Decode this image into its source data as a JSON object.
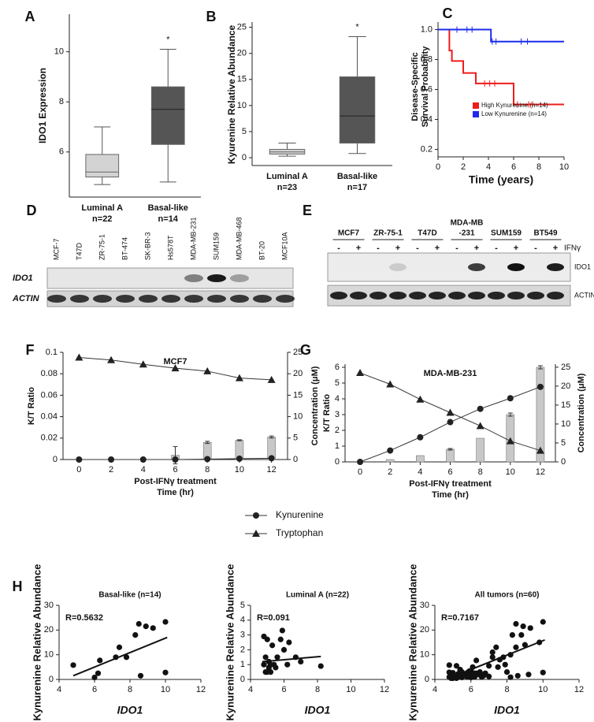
{
  "chart_data": [
    {
      "type": "box",
      "panel": "A",
      "ylabel": "IDO1 Expression",
      "categories": [
        "Luminal A",
        "Basal-like"
      ],
      "n_labels": [
        "n=22",
        "n=14"
      ],
      "boxes": [
        {
          "min": 4.7,
          "q1": 5.0,
          "median": 5.2,
          "q3": 5.9,
          "max": 7.0
        },
        {
          "min": 4.8,
          "q1": 6.3,
          "median": 7.7,
          "q3": 8.6,
          "max": 10.1
        }
      ],
      "colors": [
        "#d3d3d3",
        "#555555"
      ],
      "annotation": "*",
      "ylim": [
        4.2,
        11.5
      ],
      "yticks": [
        6,
        8,
        10
      ]
    },
    {
      "type": "box",
      "panel": "B",
      "ylabel": "Kyurenine Relative Abundance",
      "categories": [
        "Luminal A",
        "Basal-like"
      ],
      "n_labels": [
        "n=23",
        "n=17"
      ],
      "boxes": [
        {
          "min": 0.3,
          "q1": 0.7,
          "median": 1.1,
          "q3": 1.6,
          "max": 2.8
        },
        {
          "min": 0.8,
          "q1": 2.8,
          "median": 8,
          "q3": 15.5,
          "max": 23.2
        }
      ],
      "colors": [
        "#d3d3d3",
        "#555555"
      ],
      "annotation": "*",
      "ylim": [
        -1.5,
        26
      ],
      "yticks": [
        0,
        5,
        10,
        15,
        20,
        25
      ]
    },
    {
      "type": "step",
      "panel": "C",
      "xlabel": "Time (years)",
      "ylabel": [
        "Disease-Specific",
        "Survival Probability"
      ],
      "series": [
        {
          "name": "High Kynurenine (n=14)",
          "color": "#ee1c1c",
          "x": [
            0,
            0.9,
            1.1,
            2,
            3,
            6,
            10
          ],
          "values": [
            1.0,
            0.86,
            0.79,
            0.71,
            0.64,
            0.5,
            0.5
          ],
          "censored": [
            3.7,
            4.1,
            4.5,
            6.3,
            7.2,
            7.5
          ]
        },
        {
          "name": "Low Kynurenine (n=14)",
          "color": "#1c2bee",
          "x": [
            0,
            4.2,
            10
          ],
          "values": [
            1.0,
            0.92,
            0.92
          ],
          "censored": [
            1.5,
            2.3,
            2.7,
            4.3,
            4.6,
            6.6,
            7.1
          ]
        }
      ],
      "legend": "lower right",
      "xlim": [
        0,
        10
      ],
      "xticks": [
        0,
        2,
        4,
        6,
        8,
        10
      ],
      "ylim": [
        0.15,
        1.05
      ],
      "yticks": [
        0.2,
        0.4,
        0.6,
        0.8,
        {
          "value": 1,
          "label": "1.0"
        }
      ]
    },
    {
      "type": "combo",
      "panel": "F",
      "title": "MCF7",
      "xlabel": [
        "Post-IFNγ treatment",
        "Time (hr)"
      ],
      "ylabel": "K/T Ratio",
      "y2label": "Concentration (μM)",
      "x": [
        0,
        2,
        4,
        6,
        8,
        10,
        12
      ],
      "series": [
        {
          "type": "bar",
          "color": "#c8c8c8",
          "values": [
            0,
            0,
            0,
            0.004,
            0.016,
            0.018,
            0.021
          ],
          "errors": [
            0,
            0,
            0,
            0.008,
            0.001,
            0.0005,
            0.001
          ]
        },
        {
          "type": "line",
          "name": "Kynurenine",
          "marker": "circle",
          "axis": "y2",
          "values": [
            0,
            0,
            0,
            0,
            0.1,
            0.2,
            0.3
          ]
        },
        {
          "type": "line",
          "name": "Tryptophan",
          "marker": "triangle",
          "axis": "y2",
          "values": [
            23.8,
            23.2,
            22.2,
            21.3,
            20.6,
            19,
            18.6
          ]
        }
      ],
      "xlim": [
        -1,
        13
      ],
      "xticks": [
        0,
        2,
        4,
        6,
        8,
        10,
        12
      ],
      "ylim": [
        0,
        0.1
      ],
      "yticks": [
        0,
        0.02,
        0.04,
        0.06,
        0.08,
        0.1
      ],
      "y2lim": [
        0,
        25
      ],
      "y2ticks": [
        0,
        5,
        10,
        15,
        20,
        25
      ]
    },
    {
      "type": "combo",
      "panel": "G",
      "title": "MDA-MB-231",
      "xlabel": [
        "Post-IFNγ treatment",
        "Time (hr)"
      ],
      "ylabel": "K/T Ratio",
      "y2label": "Concentration (μM)",
      "x": [
        0,
        2,
        4,
        6,
        8,
        10,
        12
      ],
      "series": [
        {
          "type": "bar",
          "color": "#c8c8c8",
          "values": [
            0,
            0.15,
            0.4,
            0.8,
            1.5,
            3.0,
            6.0
          ],
          "errors": [
            0,
            0,
            0,
            0.05,
            0,
            0.1,
            0.1
          ]
        },
        {
          "type": "line",
          "marker": "circle",
          "axis": "y2",
          "values": [
            0,
            3,
            6.5,
            10.5,
            14,
            16.8,
            19.8
          ]
        },
        {
          "type": "line",
          "marker": "triangle",
          "axis": "y2",
          "values": [
            23.5,
            20.5,
            16.5,
            13,
            9.5,
            5.5,
            3
          ]
        }
      ],
      "xlim": [
        -1,
        13
      ],
      "xticks": [
        0,
        2,
        4,
        6,
        8,
        10,
        12
      ],
      "ylim": [
        0,
        6.2
      ],
      "yticks": [
        0,
        1,
        2,
        3,
        4,
        5,
        6
      ],
      "y2lim": [
        0,
        25.8
      ],
      "y2ticks": [
        0,
        5,
        10,
        15,
        20,
        25
      ]
    },
    {
      "type": "scatter",
      "panel": "H",
      "title": "Basal-like   (n=14)",
      "annotation": "R=0.5632",
      "xlabel": "IDO1",
      "ylabel": "Kynurenine Relative Abundance",
      "x": [
        4.8,
        6.0,
        6.2,
        6.3,
        7.2,
        7.4,
        7.8,
        8.3,
        8.5,
        8.6,
        8.9,
        9.3,
        10.0,
        10.0
      ],
      "values": [
        5.8,
        0.8,
        2.5,
        7.7,
        9,
        13,
        9,
        18,
        22.5,
        1.5,
        21.5,
        20.8,
        23.3,
        2.8
      ],
      "fit": {
        "x": [
          4.8,
          10.1
        ],
        "y": [
          1.5,
          17
        ]
      },
      "xlim": [
        4,
        12
      ],
      "xticks": [
        4,
        6,
        8,
        10,
        12
      ],
      "ylim": [
        0,
        30
      ],
      "yticks": [
        0,
        10,
        20,
        30
      ]
    },
    {
      "type": "scatter",
      "title": "Luminal A  (n=22)",
      "annotation": "R=0.091",
      "xlabel": "IDO1",
      "ylabel": "Kynurenine Relative Abundance",
      "x": [
        4.8,
        4.9,
        4.8,
        4.9,
        5.0,
        5.0,
        5.1,
        5.1,
        5.2,
        5.2,
        5.3,
        5.4,
        5.5,
        5.6,
        5.8,
        5.9,
        6.0,
        6.2,
        6.3,
        6.7,
        7.0,
        8.2
      ],
      "values": [
        2.9,
        0.5,
        1.0,
        1.5,
        2.7,
        0.5,
        1.2,
        0.8,
        1.0,
        0.5,
        2.3,
        1.0,
        0.8,
        1.5,
        2.7,
        3.3,
        2.0,
        1.0,
        2.5,
        1.5,
        1.2,
        0.9
      ],
      "fit": {
        "x": [
          4.7,
          8.2
        ],
        "y": [
          1.2,
          1.55
        ]
      },
      "xlim": [
        4,
        12
      ],
      "xticks": [
        4,
        6,
        8,
        10,
        12
      ],
      "ylim": [
        0,
        5
      ],
      "yticks": [
        0,
        1,
        2,
        3,
        4,
        5
      ]
    },
    {
      "type": "scatter",
      "title": "All tumors   (n=60)",
      "annotation": "R=0.7167",
      "xlabel": "IDO1",
      "ylabel": "Kynurenine Relative Abundance",
      "x": [
        4.8,
        6.0,
        6.2,
        6.3,
        7.2,
        7.4,
        7.8,
        8.3,
        8.5,
        8.6,
        8.9,
        9.3,
        10.0,
        10.0,
        4.8,
        4.9,
        4.8,
        4.9,
        5.0,
        5.0,
        5.1,
        5.1,
        5.2,
        5.2,
        5.3,
        5.4,
        5.5,
        5.6,
        5.8,
        5.9,
        6.0,
        6.2,
        6.3,
        6.7,
        7.0,
        8.2,
        5.2,
        5.4,
        5.5,
        5.3,
        5.6,
        5.8,
        6.0,
        6.1,
        6.4,
        6.5,
        6.6,
        6.8,
        7.0,
        7.2,
        7.5,
        7.6,
        7.9,
        8.0,
        8.2,
        8.5,
        8.8,
        9.0,
        9.2,
        9.8
      ],
      "values": [
        5.8,
        0.8,
        2.5,
        7.7,
        9,
        13,
        9,
        18,
        22.5,
        1.5,
        21.5,
        20.8,
        23.3,
        2.8,
        2.9,
        0.5,
        1.0,
        1.5,
        2.7,
        0.5,
        1.2,
        0.8,
        1.0,
        0.5,
        2.3,
        1.0,
        0.8,
        1.5,
        2.7,
        3.3,
        2.0,
        1.0,
        2.5,
        1.5,
        1.2,
        0.9,
        5.5,
        4,
        3,
        1.5,
        2,
        1,
        3.5,
        5,
        2,
        3,
        1,
        2.5,
        5.5,
        11,
        5,
        8,
        6,
        3,
        10,
        13,
        18,
        14,
        2,
        15
      ],
      "fit": {
        "x": [
          4.8,
          10.1
        ],
        "y": [
          0.5,
          16
        ]
      },
      "xlim": [
        4,
        12
      ],
      "xticks": [
        4,
        6,
        8,
        10,
        12
      ],
      "ylim": [
        0,
        30
      ],
      "yticks": [
        0,
        10,
        20,
        30
      ]
    }
  ],
  "blots": [
    {
      "panel": "D",
      "lanes": [
        "MCF-7",
        "T47D",
        "ZR-75-1",
        "BT-474",
        "SK-BR-3",
        "Hs578T",
        "MDA-MB-231",
        "SUM159",
        "MDA-MB-468",
        "BT-20",
        "MCF10A"
      ],
      "rows": [
        {
          "label": "IDO1",
          "intensity": [
            0,
            0,
            0,
            0,
            0,
            0,
            0.5,
            1,
            0.35,
            0,
            0
          ]
        },
        {
          "label": "ACTIN",
          "intensity": [
            0.85,
            0.85,
            0.85,
            0.85,
            0.85,
            0.85,
            0.85,
            0.85,
            0.85,
            0.85,
            0.85
          ]
        }
      ]
    },
    {
      "panel": "E",
      "groups": [
        [
          "MCF7"
        ],
        [
          "ZR-75-1"
        ],
        [
          "T47D"
        ],
        [
          "MDA-MB",
          "-231"
        ],
        [
          "SUM159"
        ],
        [
          "BT549"
        ]
      ],
      "treatment_label": "IFNγ",
      "signs": [
        "-",
        "+",
        "-",
        "+",
        "-",
        "+",
        "-",
        "+",
        "-",
        "+",
        "-",
        "+"
      ],
      "rows": [
        {
          "label": "IDO1",
          "intensity": [
            0,
            0,
            0,
            0.15,
            0,
            0,
            0,
            0.8,
            0,
            1,
            0,
            0.95
          ]
        },
        {
          "label": "ACTIN",
          "intensity": [
            0.9,
            0.9,
            0.9,
            0.9,
            0.9,
            0.9,
            0.9,
            0.9,
            0.9,
            0.9,
            0.9,
            0.9
          ]
        }
      ]
    }
  ]
}
